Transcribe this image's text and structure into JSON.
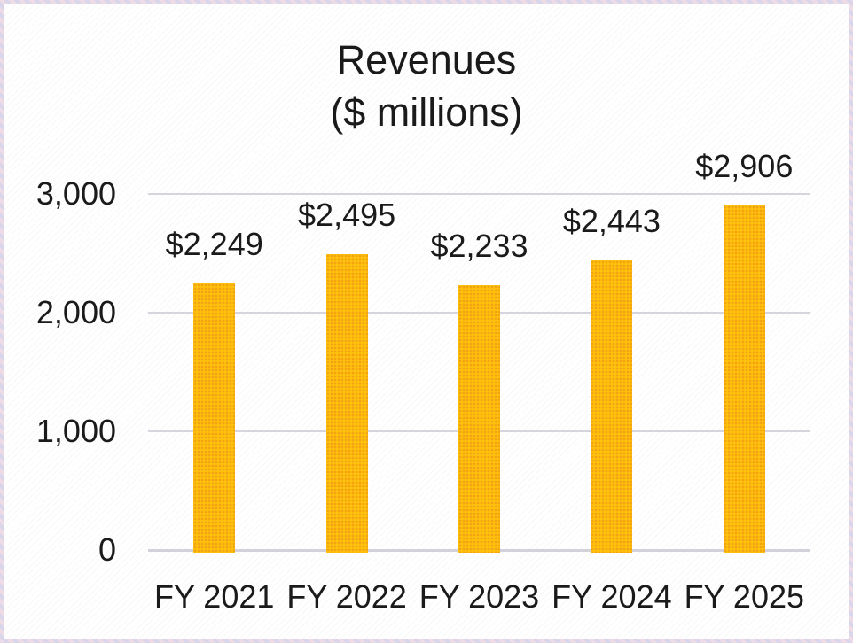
{
  "chart_data": {
    "type": "bar",
    "title": "Revenues\n($ millions)",
    "title_line1": "Revenues",
    "title_line2": "($ millions)",
    "categories": [
      "FY 2021",
      "FY 2022",
      "FY 2023",
      "FY 2024",
      "FY 2025"
    ],
    "values": [
      2249,
      2495,
      2233,
      2443,
      2906
    ],
    "value_labels": [
      "$2,249",
      "$2,495",
      "$2,233",
      "$2,443",
      "$2,906"
    ],
    "y_ticks": [
      0,
      1000,
      2000,
      3000
    ],
    "y_tick_labels": [
      "0",
      "1,000",
      "2,000",
      "3,000"
    ],
    "ylim": [
      0,
      3000
    ],
    "xlabel": "",
    "ylabel": "",
    "grid": true,
    "legend": "none",
    "colors": {
      "bar": "#FFC30B",
      "bar_dot_texture": "#E8841C",
      "text": "#1a1a1a",
      "gridline": "#d8d4de",
      "background": "#ffffff",
      "frame_border": "#ddd7e8"
    }
  }
}
